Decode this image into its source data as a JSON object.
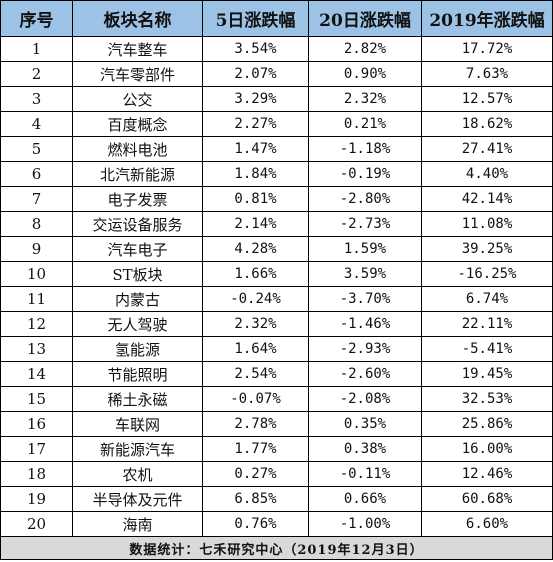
{
  "table": {
    "headers": [
      "序号",
      "板块名称",
      "5日涨跌幅",
      "20日涨跌幅",
      "2019年涨跌幅"
    ],
    "rows": [
      [
        "1",
        "汽车整车",
        "3.54%",
        "2.82%",
        "17.72%"
      ],
      [
        "2",
        "汽车零部件",
        "2.07%",
        "0.90%",
        "7.63%"
      ],
      [
        "3",
        "公交",
        "3.29%",
        "2.32%",
        "12.57%"
      ],
      [
        "4",
        "百度概念",
        "2.27%",
        "0.21%",
        "18.62%"
      ],
      [
        "5",
        "燃料电池",
        "1.47%",
        "-1.18%",
        "27.41%"
      ],
      [
        "6",
        "北汽新能源",
        "1.84%",
        "-0.19%",
        "4.40%"
      ],
      [
        "7",
        "电子发票",
        "0.81%",
        "-2.80%",
        "42.14%"
      ],
      [
        "8",
        "交运设备服务",
        "2.14%",
        "-2.73%",
        "11.08%"
      ],
      [
        "9",
        "汽车电子",
        "4.28%",
        "1.59%",
        "39.25%"
      ],
      [
        "10",
        "ST板块",
        "1.66%",
        "3.59%",
        "-16.25%"
      ],
      [
        "11",
        "内蒙古",
        "-0.24%",
        "-3.70%",
        "6.74%"
      ],
      [
        "12",
        "无人驾驶",
        "2.32%",
        "-1.46%",
        "22.11%"
      ],
      [
        "13",
        "氢能源",
        "1.64%",
        "-2.93%",
        "-5.41%"
      ],
      [
        "14",
        "节能照明",
        "2.54%",
        "-2.60%",
        "19.45%"
      ],
      [
        "15",
        "稀土永磁",
        "-0.07%",
        "-2.08%",
        "32.53%"
      ],
      [
        "16",
        "车联网",
        "2.78%",
        "0.35%",
        "25.86%"
      ],
      [
        "17",
        "新能源汽车",
        "1.77%",
        "0.38%",
        "16.00%"
      ],
      [
        "18",
        "农机",
        "0.27%",
        "-0.11%",
        "12.46%"
      ],
      [
        "19",
        "半导体及元件",
        "6.85%",
        "0.66%",
        "60.68%"
      ],
      [
        "20",
        "海南",
        "0.76%",
        "-1.00%",
        "6.60%"
      ]
    ],
    "footer": "数据统计：七禾研究中心（2019年12月3日）"
  },
  "colors": {
    "header_bg": "#9cc3e6",
    "footer_bg": "#d9d9d9",
    "border": "#000000"
  }
}
